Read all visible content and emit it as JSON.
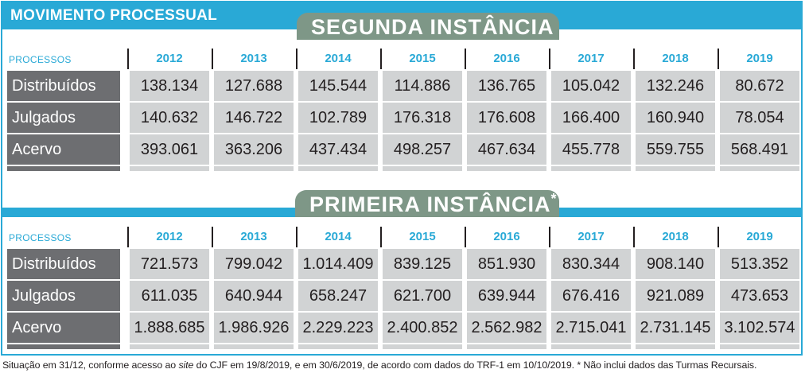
{
  "header": {
    "title": "MOVIMENTO PROCESSUAL"
  },
  "colors": {
    "accent": "#29a9d6",
    "banner": "#7e9787",
    "label_bg": "#6d6e71",
    "cell_bg": "#d1d3d4"
  },
  "sections": [
    {
      "banner": "SEGUNDA INSTÂNCIA",
      "banner_mark": "",
      "processes_label": "PROCESSOS",
      "years": [
        "2012",
        "2013",
        "2014",
        "2015",
        "2016",
        "2017",
        "2018",
        "2019"
      ],
      "rows": [
        {
          "label": "Distribuídos",
          "values": [
            "138.134",
            "127.688",
            "145.544",
            "114.886",
            "136.765",
            "105.042",
            "132.246",
            "80.672"
          ]
        },
        {
          "label": "Julgados",
          "values": [
            "140.632",
            "146.722",
            "102.789",
            "176.318",
            "176.608",
            "166.400",
            "160.940",
            "78.054"
          ]
        },
        {
          "label": "Acervo",
          "values": [
            "393.061",
            "363.206",
            "437.434",
            "498.257",
            "467.634",
            "455.778",
            "559.755",
            "568.491"
          ]
        }
      ]
    },
    {
      "banner": "PRIMEIRA INSTÂNCIA",
      "banner_mark": "*",
      "processes_label": "PROCESSOS",
      "years": [
        "2012",
        "2013",
        "2014",
        "2015",
        "2016",
        "2017",
        "2018",
        "2019"
      ],
      "rows": [
        {
          "label": "Distribuídos",
          "values": [
            "721.573",
            "799.042",
            "1.014.409",
            "839.125",
            "851.930",
            "830.344",
            "908.140",
            "513.352"
          ]
        },
        {
          "label": "Julgados",
          "values": [
            "611.035",
            "640.944",
            "658.247",
            "621.700",
            "639.944",
            "676.416",
            "921.089",
            "473.653"
          ]
        },
        {
          "label": "Acervo",
          "values": [
            "1.888.685",
            "1.986.926",
            "2.229.223",
            "2.400.852",
            "2.562.982",
            "2.715.041",
            "2.731.145",
            "3.102.574"
          ]
        }
      ]
    }
  ],
  "footnote": {
    "part1": "Situação em 31/12, conforme acesso ao ",
    "italic": "site",
    "part2": " do CJF em 19/8/2019, e em 30/6/2019, de acordo com dados do TRF-1 em 10/10/2019. * Não inclui dados das Turmas Recursais."
  }
}
